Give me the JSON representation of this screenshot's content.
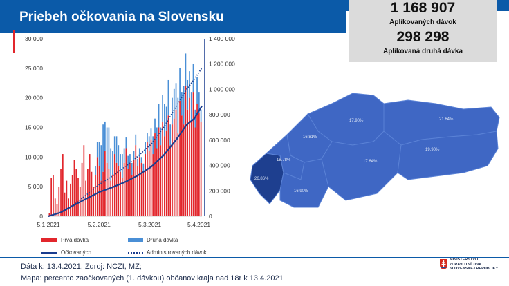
{
  "header": {
    "title": "Priebeh očkovania na Slovensku"
  },
  "stats": {
    "applied_doses": "1 168 907",
    "applied_doses_label": "Aplikovaných dávok",
    "second_doses": "298 298",
    "second_doses_label": "Aplikovaná druhá dávka"
  },
  "colors": {
    "first_dose": "#e2262c",
    "second_dose": "#4a8fd6",
    "vaccinated_line": "#1a3d8f",
    "admin_line": "#1a3d8f",
    "brand": "#0b5aa8"
  },
  "chart_data": {
    "type": "bar",
    "x_ticks": [
      "5.1.2021",
      "5.2.2021",
      "5.3.2021",
      "5.4.2021"
    ],
    "ylim_left": [
      0,
      30000
    ],
    "ylim_right": [
      0,
      1400000
    ],
    "y_left_ticks": [
      "0",
      "5 000",
      "10 000",
      "15 000",
      "20 000",
      "25 000",
      "30 000"
    ],
    "y_right_ticks": [
      "0",
      "200 000",
      "400 000",
      "600 000",
      "800 000",
      "1 000 000",
      "1 200 000",
      "1 400 000"
    ],
    "series": [
      {
        "name": "Prvá dávka",
        "axis": "left",
        "type": "bar",
        "values": [
          500,
          6500,
          7000,
          3000,
          2000,
          5000,
          8000,
          10500,
          4000,
          6000,
          3000,
          5500,
          7000,
          9500,
          8000,
          6500,
          5000,
          9000,
          12000,
          6000,
          8000,
          10500,
          7500,
          5000,
          7000,
          10000,
          8500,
          6000,
          7500,
          11000,
          9000,
          8000,
          6000,
          7000,
          10500,
          9000,
          8500,
          7500,
          6500,
          9000,
          11500,
          8000,
          9000,
          7000,
          9500,
          12000,
          8500,
          10000,
          9000,
          7500,
          10500,
          12500,
          11000,
          13000,
          10500,
          14000,
          11500,
          15000,
          12000,
          16000,
          13500,
          14500,
          17000,
          12000,
          15500,
          16500,
          18000,
          14000,
          19500,
          17000,
          15500,
          22000,
          18000,
          20000,
          16000,
          21000,
          15000,
          19000,
          17500,
          16000
        ]
      },
      {
        "name": "Druhá dávka",
        "axis": "left",
        "type": "bar",
        "values": [
          0,
          0,
          0,
          0,
          0,
          0,
          0,
          0,
          0,
          0,
          0,
          0,
          0,
          0,
          0,
          0,
          0,
          0,
          0,
          0,
          0,
          0,
          0,
          0,
          1500,
          2500,
          4000,
          6000,
          8000,
          5000,
          6000,
          7000,
          5500,
          4000,
          3000,
          4500,
          3500,
          3000,
          4000,
          2500,
          1800,
          2200,
          1500,
          2000,
          1500,
          1800,
          1200,
          1500,
          1000,
          1400,
          2000,
          1600,
          2500,
          1800,
          3000,
          2500,
          3500,
          4000,
          3000,
          4500,
          5500,
          4000,
          6000,
          3500,
          4500,
          5000,
          4500,
          6000,
          5500,
          4000,
          6500,
          5500,
          5000,
          4500,
          5000,
          4800,
          3000,
          4500,
          3500,
          2000
        ]
      },
      {
        "name": "Očkovaných",
        "axis": "right",
        "type": "line",
        "x_frac": [
          0,
          0.08,
          0.17,
          0.25,
          0.33,
          0.42,
          0.5,
          0.58,
          0.67,
          0.75,
          0.83,
          0.9,
          0.95,
          1
        ],
        "values": [
          0,
          30000,
          90000,
          140000,
          190000,
          230000,
          270000,
          320000,
          390000,
          480000,
          600000,
          720000,
          770000,
          870000
        ]
      },
      {
        "name": "Administrovaných dávok",
        "axis": "right",
        "type": "line",
        "dashed": true,
        "x_frac": [
          0,
          0.08,
          0.17,
          0.25,
          0.33,
          0.42,
          0.5,
          0.58,
          0.67,
          0.75,
          0.83,
          0.9,
          0.95,
          1
        ],
        "values": [
          0,
          30000,
          95000,
          170000,
          250000,
          320000,
          390000,
          470000,
          570000,
          700000,
          860000,
          1000000,
          1080000,
          1170000
        ]
      }
    ]
  },
  "map": {
    "regions": [
      {
        "name": "BA",
        "label": "26.86%"
      },
      {
        "name": "TT",
        "label": "18.78%"
      },
      {
        "name": "TN",
        "label": "16.81%"
      },
      {
        "name": "NR",
        "label": "16.90%"
      },
      {
        "name": "ZA",
        "label": "17.90%"
      },
      {
        "name": "BB",
        "label": "17.64%"
      },
      {
        "name": "PO",
        "label": "21.64%"
      },
      {
        "name": "KE",
        "label": "19.90%"
      }
    ]
  },
  "footer": {
    "line1": "Dáta k: 13.4.2021, Zdroj: NCZI, MZ;",
    "line2": "Mapa: percento zaočkovaných (1. dávkou) občanov kraja nad 18r k 13.4.2021",
    "ministry_1": "MINISTERSTVO",
    "ministry_2": "ZDRAVOTNÍCTVA",
    "ministry_3": "SLOVENSKEJ REPUBLIKY"
  }
}
